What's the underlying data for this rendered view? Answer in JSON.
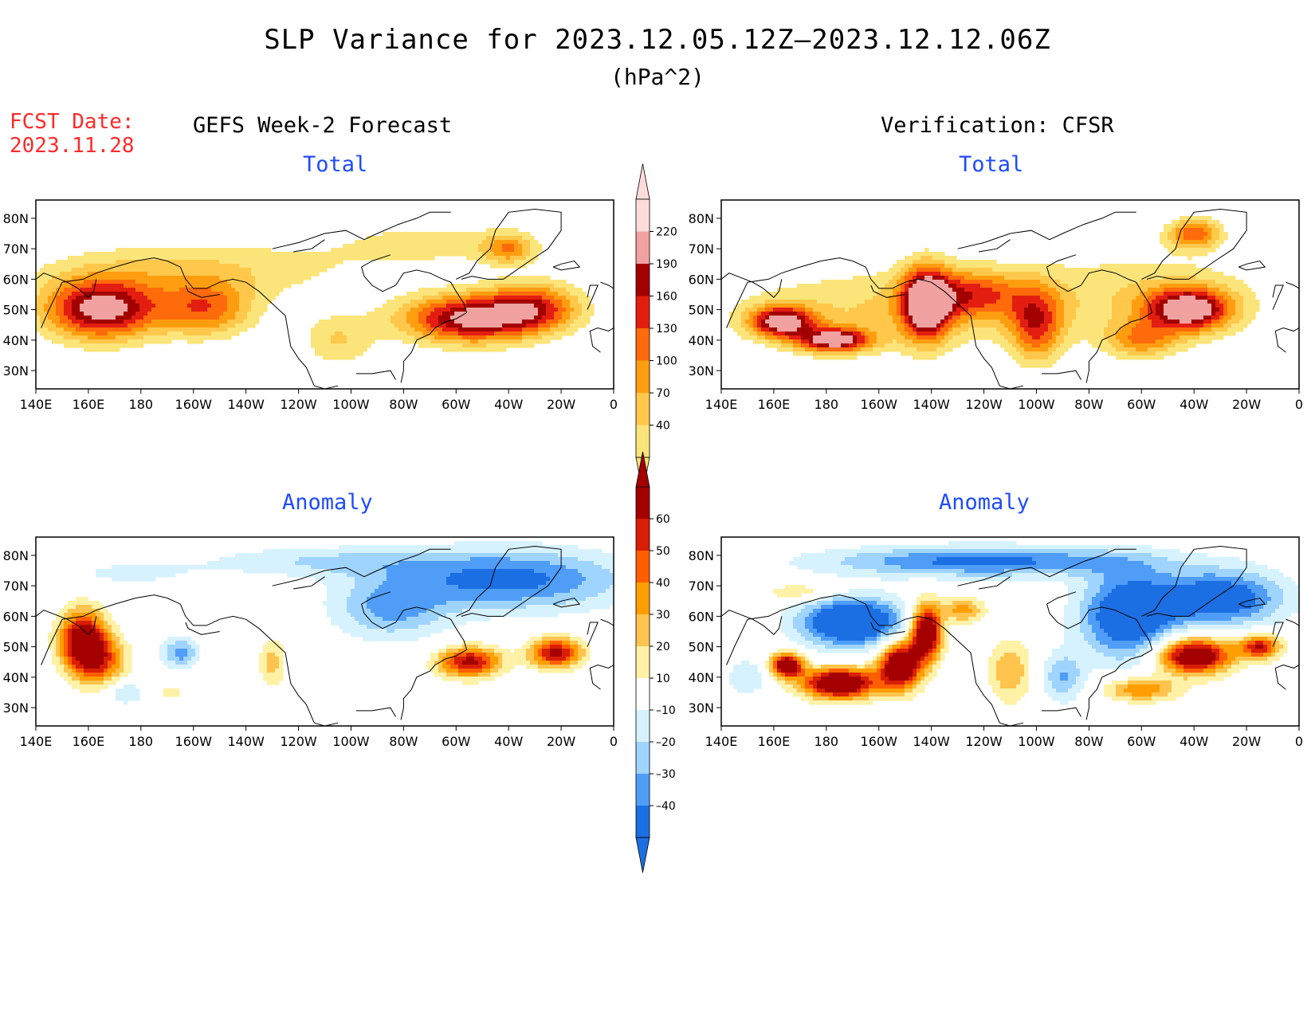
{
  "title": "SLP Variance for 2023.12.05.12Z—2023.12.12.06Z",
  "units": "(hPa^2)",
  "fcst": {
    "line1": "FCST Date:",
    "line2": "2023.11.28"
  },
  "panels": {
    "forecast_total": {
      "header": "GEFS Week-2 Forecast",
      "subtitle": "Total"
    },
    "verif_total": {
      "header": "Verification: CFSR",
      "subtitle": "Total"
    },
    "forecast_anom": {
      "subtitle": "Anomaly"
    },
    "verif_anom": {
      "subtitle": "Anomaly"
    }
  },
  "axes": {
    "lon_labels": [
      "140E",
      "160E",
      "180",
      "160W",
      "140W",
      "120W",
      "100W",
      "80W",
      "60W",
      "40W",
      "20W",
      "0"
    ],
    "lat_labels": [
      "80N",
      "70N",
      "60N",
      "50N",
      "40N",
      "30N"
    ]
  },
  "colorbars": {
    "total": {
      "levels": [
        "40",
        "70",
        "100",
        "130",
        "160",
        "190",
        "220"
      ],
      "colors": [
        "#fbe57a",
        "#ffc84b",
        "#ff9d10",
        "#ff6a0a",
        "#e31e10",
        "#a30000",
        "#f2a1a1",
        "#ffdcdc"
      ]
    },
    "anomaly": {
      "levels": [
        "60",
        "50",
        "40",
        "30",
        "20",
        "10",
        "–10",
        "–20",
        "–30",
        "–40"
      ],
      "colors": [
        "#a50000",
        "#d81e05",
        "#ff5e00",
        "#ff9e00",
        "#ffc44e",
        "#fff1a6",
        "#ffffff",
        "#d7f2ff",
        "#9fd4ff",
        "#4f9df7",
        "#1c6fe3"
      ]
    }
  },
  "palette": {
    "total": [
      "#ffffff",
      "#fbe57a",
      "#ffc84b",
      "#ff9d10",
      "#ff6a0a",
      "#e31e10",
      "#a30000",
      "#f2a1a1",
      "#ffdcdc"
    ],
    "pos": [
      "#fff1a6",
      "#ffc44e",
      "#ff9e00",
      "#ff5e00",
      "#d81e05",
      "#a50000"
    ],
    "neg": [
      "#d7f2ff",
      "#9fd4ff",
      "#4f9df7",
      "#1c6fe3"
    ]
  }
}
